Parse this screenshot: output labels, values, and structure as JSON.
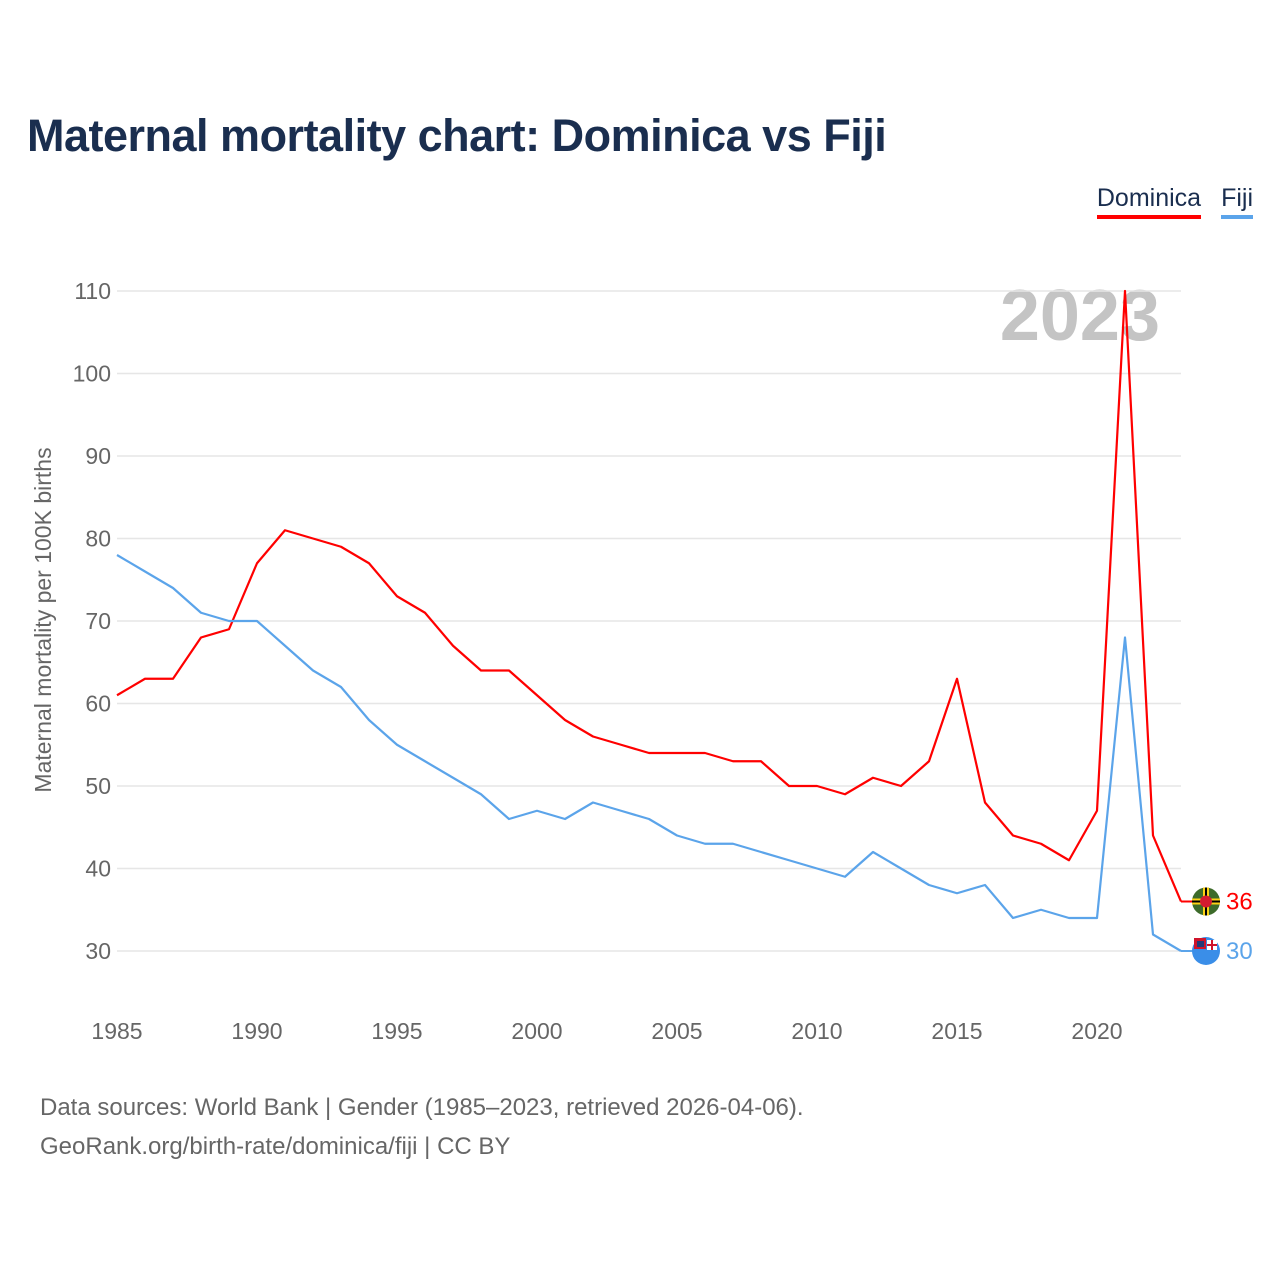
{
  "title": "Maternal mortality chart: Dominica vs Fiji",
  "source_line1": "Data sources: World Bank | Gender (1985–2023, retrieved 2026-04-06).",
  "source_line2": "GeoRank.org/birth-rate/dominica/fiji | CC BY",
  "chart_data": {
    "type": "line",
    "title": "Maternal mortality chart: Dominica vs Fiji",
    "ylabel": "Maternal mortality per 100K births",
    "xlabel": "",
    "year_watermark": "2023",
    "xlim": [
      1985,
      2023
    ],
    "ylim": [
      25,
      115
    ],
    "x_ticks": [
      1985,
      1990,
      1995,
      2000,
      2005,
      2010,
      2015,
      2020
    ],
    "y_ticks": [
      30,
      40,
      50,
      60,
      70,
      80,
      90,
      100,
      110
    ],
    "grid": true,
    "legend_position": "top-right",
    "x": [
      1985,
      1986,
      1987,
      1988,
      1989,
      1990,
      1991,
      1992,
      1993,
      1994,
      1995,
      1996,
      1997,
      1998,
      1999,
      2000,
      2001,
      2002,
      2003,
      2004,
      2005,
      2006,
      2007,
      2008,
      2009,
      2010,
      2011,
      2012,
      2013,
      2014,
      2015,
      2016,
      2017,
      2018,
      2019,
      2020,
      2021,
      2022,
      2023
    ],
    "series": [
      {
        "name": "Dominica",
        "color": "#ff0000",
        "end_label": "36",
        "values": [
          61,
          63,
          63,
          68,
          69,
          77,
          81,
          80,
          79,
          77,
          73,
          71,
          67,
          64,
          64,
          61,
          58,
          56,
          55,
          54,
          54,
          54,
          53,
          53,
          50,
          50,
          49,
          51,
          50,
          53,
          63,
          48,
          44,
          43,
          41,
          47,
          110,
          44,
          36
        ]
      },
      {
        "name": "Fiji",
        "color": "#5ba4ea",
        "end_label": "30",
        "values": [
          78,
          76,
          74,
          71,
          70,
          70,
          67,
          64,
          62,
          58,
          55,
          53,
          51,
          49,
          46,
          47,
          46,
          48,
          47,
          46,
          44,
          43,
          43,
          42,
          41,
          40,
          39,
          42,
          40,
          38,
          37,
          38,
          34,
          35,
          34,
          34,
          68,
          32,
          30
        ]
      }
    ]
  }
}
